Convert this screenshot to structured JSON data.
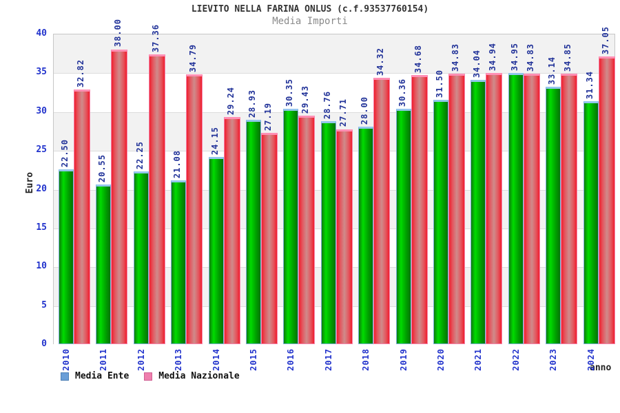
{
  "header": {
    "title": "LIEVITO NELLA FARINA ONLUS (c.f.93537760154)",
    "subtitle": "Media Importi"
  },
  "axes": {
    "y_title": "Euro",
    "x_title": "anno",
    "y_ticks": [
      0,
      5,
      10,
      15,
      20,
      25,
      30,
      35,
      40
    ]
  },
  "legend": {
    "items": [
      {
        "label": "Media Ente",
        "swatch_color": "#6a9ed8"
      },
      {
        "label": "Media Nazionale",
        "swatch_color": "#ef7fae"
      }
    ]
  },
  "colors": {
    "ente_bar": "#00c300",
    "nazionale_bar": "#ef1e2e",
    "tick_text": "#2233cc",
    "value_text": "#223399",
    "band_gray": "#f2f2f2",
    "subtitle_text": "#8a8a8a"
  },
  "chart_data": {
    "type": "bar",
    "title": "LIEVITO NELLA FARINA ONLUS (c.f.93537760154)",
    "subtitle": "Media Importi",
    "xlabel": "anno",
    "ylabel": "Euro",
    "ylim": [
      0,
      40
    ],
    "ytick_step": 5,
    "grid": "horizontal-bands-alternating",
    "legend_position": "bottom-left",
    "value_labels": "rotated-90-above-bars",
    "categories": [
      "2010",
      "2011",
      "2012",
      "2013",
      "2014",
      "2015",
      "2016",
      "2017",
      "2018",
      "2019",
      "2020",
      "2021",
      "2022",
      "2023",
      "2024"
    ],
    "series": [
      {
        "name": "Media Ente",
        "color": "green",
        "values": [
          22.5,
          20.55,
          22.25,
          21.08,
          24.15,
          28.93,
          30.35,
          28.76,
          28.0,
          30.36,
          31.5,
          34.04,
          34.95,
          33.14,
          31.34
        ]
      },
      {
        "name": "Media Nazionale",
        "color": "red",
        "values": [
          32.82,
          38.0,
          37.36,
          34.79,
          29.24,
          27.19,
          29.43,
          27.71,
          34.32,
          34.68,
          34.83,
          34.94,
          34.83,
          34.85,
          37.05
        ]
      }
    ]
  }
}
